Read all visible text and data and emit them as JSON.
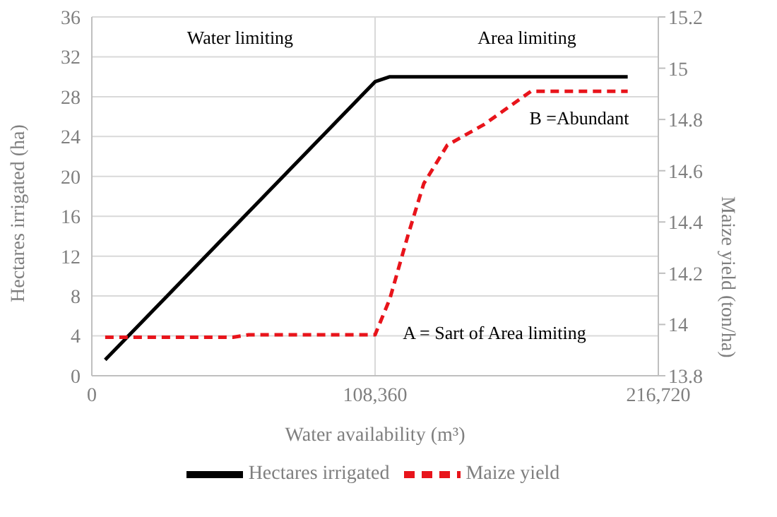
{
  "chart_data": {
    "type": "line",
    "xlabel": "Water availability (m³)",
    "ylabel": "Hectares irrigated (ha)",
    "y2label": "Maize yield (ton/ha)",
    "series": [
      {
        "name": "Hectares irrigated",
        "color": "#000000",
        "line_style": "solid",
        "x": [
          5100,
          108360,
          114000,
          205000
        ],
        "values": [
          1.6,
          29.5,
          30,
          30
        ]
      },
      {
        "name": "Maize yield",
        "color": "#e8141b",
        "line_style": "dashed",
        "axis": "y2",
        "x": [
          5100,
          54000,
          60000,
          108360,
          114000,
          121000,
          127000,
          136000,
          150000,
          168000,
          205000
        ],
        "values": [
          13.95,
          13.95,
          13.96,
          13.96,
          14.1,
          14.35,
          14.55,
          14.7,
          14.78,
          14.91,
          14.91
        ]
      }
    ],
    "xlim": [
      0,
      216720
    ],
    "xticks": [
      0,
      {
        "value": 108360,
        "label": "108,360"
      },
      {
        "value": 216720,
        "label": "216,720"
      }
    ],
    "ylim": [
      0,
      36
    ],
    "yticks": [
      0,
      4,
      8,
      12,
      16,
      20,
      24,
      28,
      32,
      36
    ],
    "y2lim": [
      13.8,
      15.2
    ],
    "y2ticks": [
      13.8,
      14,
      14.2,
      14.4,
      14.6,
      14.8,
      15,
      15.2
    ],
    "grid": true,
    "legend": "bottom",
    "marker": "none",
    "annotations": [
      "Water limiting",
      "Area limiting",
      "B =Abundant",
      "A = Sart of Area limiting"
    ]
  }
}
